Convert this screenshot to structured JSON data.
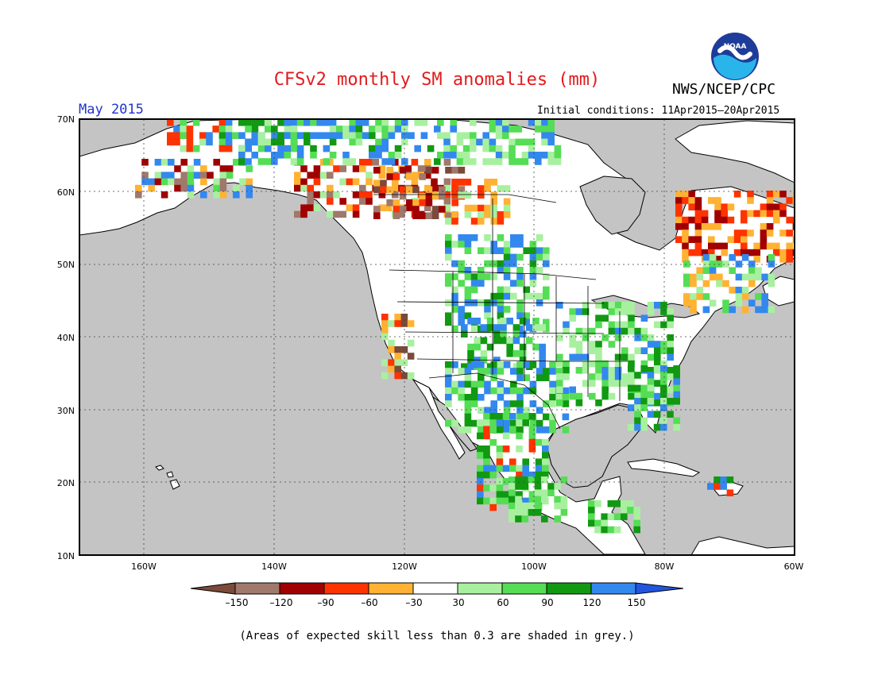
{
  "title": "CFSv2 monthly SM anomalies (mm)",
  "agency": "NWS/NCEP/CPC",
  "logo_text": "NOAA",
  "month": "May 2015",
  "initial_conditions": "Initial conditions: 11Apr2015–20Apr2015",
  "lat_labels": [
    "70N",
    "60N",
    "50N",
    "40N",
    "30N",
    "20N",
    "10N"
  ],
  "lon_labels": [
    "160W",
    "140W",
    "120W",
    "100W",
    "80W",
    "60W"
  ],
  "legend": {
    "ticks": [
      "–150",
      "–120",
      "–90",
      "–60",
      "–30",
      "30",
      "60",
      "90",
      "120",
      "150"
    ],
    "colors": [
      "#7a4a3a",
      "#a0786c",
      "#a00000",
      "#ff3300",
      "#ffb233",
      "#ffffff",
      "#a8f0a0",
      "#55dd55",
      "#119911",
      "#3388ee",
      "#2255dd"
    ]
  },
  "skill_note": "(Areas of expected skill less than 0.3 are shaded in grey.)",
  "colors": {
    "ocean": "#c4c4c4",
    "land": "#ffffff",
    "title": "#e31a1c",
    "month": "#2233cc"
  }
}
